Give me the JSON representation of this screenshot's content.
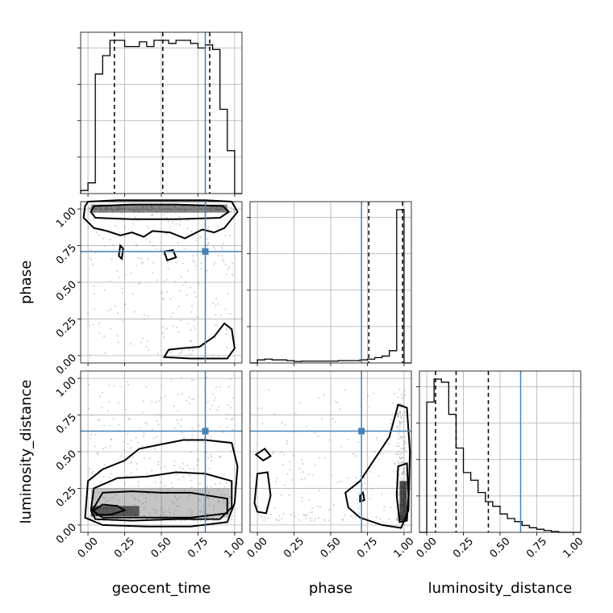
{
  "chart_data": {
    "type": "corner",
    "parameters": [
      "geocent_time",
      "phase",
      "luminosity_distance"
    ],
    "axis_labels": [
      "geocent_time",
      "phase",
      "luminosity_distance"
    ],
    "ranges": [
      [
        -0.05,
        1.05
      ],
      [
        -0.05,
        1.05
      ],
      [
        -0.05,
        1.05
      ]
    ],
    "ticks": [
      0.0,
      0.25,
      0.5,
      0.75,
      1.0
    ],
    "tick_labels": [
      "0.00",
      "0.25",
      "0.50",
      "0.75",
      "1.00"
    ],
    "truth_color": "#4682b4",
    "truths": [
      0.8,
      0.71,
      0.64
    ],
    "grid": true,
    "histograms": [
      {
        "param": "geocent_time",
        "bin_edges": [
          -0.05,
          0.0,
          0.05,
          0.1,
          0.15,
          0.2,
          0.25,
          0.3,
          0.35,
          0.4,
          0.45,
          0.5,
          0.55,
          0.6,
          0.65,
          0.7,
          0.75,
          0.8,
          0.85,
          0.9,
          0.95,
          1.0,
          1.05
        ],
        "heights": [
          0.02,
          0.07,
          0.78,
          0.9,
          1.0,
          1.0,
          0.96,
          0.96,
          0.99,
          0.96,
          1.0,
          1.0,
          0.98,
          1.0,
          1.0,
          0.98,
          0.95,
          0.97,
          0.94,
          0.55,
          0.28,
          0.0
        ],
        "quantiles": [
          0.18,
          0.51,
          0.83
        ]
      },
      {
        "param": "phase",
        "bin_edges": [
          -0.05,
          0.0,
          0.05,
          0.1,
          0.15,
          0.2,
          0.25,
          0.3,
          0.35,
          0.4,
          0.45,
          0.5,
          0.55,
          0.6,
          0.65,
          0.7,
          0.75,
          0.8,
          0.85,
          0.9,
          0.95,
          1.0,
          1.05
        ],
        "heights": [
          0.0,
          0.02,
          0.025,
          0.02,
          0.02,
          0.015,
          0.01,
          0.012,
          0.012,
          0.012,
          0.012,
          0.012,
          0.015,
          0.015,
          0.015,
          0.02,
          0.025,
          0.035,
          0.045,
          0.08,
          1.0,
          0.0
        ],
        "quantiles": [
          0.76,
          0.99
        ]
      },
      {
        "param": "luminosity_distance",
        "bin_edges": [
          -0.05,
          0.0,
          0.05,
          0.1,
          0.15,
          0.2,
          0.25,
          0.3,
          0.35,
          0.4,
          0.45,
          0.5,
          0.55,
          0.6,
          0.65,
          0.7,
          0.75,
          0.8,
          0.85,
          0.9,
          0.95,
          1.0,
          1.05
        ],
        "heights": [
          0.0,
          0.85,
          1.0,
          0.98,
          0.77,
          0.55,
          0.39,
          0.34,
          0.26,
          0.2,
          0.17,
          0.12,
          0.09,
          0.07,
          0.045,
          0.03,
          0.02,
          0.012,
          0.005,
          0.0,
          0.0,
          0.0
        ],
        "quantiles": [
          0.06,
          0.2,
          0.42
        ]
      }
    ],
    "scatter_panels": [
      {
        "x": "geocent_time",
        "y": "phase",
        "density": "phase concentrated near 1.0 across all geocent_time; sparse uniform scatter elsewhere",
        "contours": [
          [
            [
              0.0,
              1.05
            ],
            [
              0.2,
              1.06
            ],
            [
              0.5,
              1.06
            ],
            [
              0.8,
              1.06
            ],
            [
              0.98,
              1.05
            ],
            [
              1.02,
              0.98
            ],
            [
              0.93,
              0.87
            ],
            [
              0.86,
              0.84
            ],
            [
              0.78,
              0.86
            ],
            [
              0.66,
              0.8
            ],
            [
              0.56,
              0.84
            ],
            [
              0.44,
              0.85
            ],
            [
              0.38,
              0.81
            ],
            [
              0.3,
              0.84
            ],
            [
              0.22,
              0.82
            ],
            [
              0.13,
              0.85
            ],
            [
              0.04,
              0.87
            ],
            [
              -0.03,
              0.94
            ],
            [
              -0.02,
              1.02
            ],
            [
              0.0,
              1.05
            ]
          ],
          [
            [
              0.04,
              1.02
            ],
            [
              0.3,
              1.03
            ],
            [
              0.6,
              1.03
            ],
            [
              0.92,
              1.02
            ],
            [
              0.96,
              0.98
            ],
            [
              0.9,
              0.94
            ],
            [
              0.6,
              0.93
            ],
            [
              0.3,
              0.93
            ],
            [
              0.05,
              0.94
            ],
            [
              0.02,
              0.98
            ],
            [
              0.04,
              1.02
            ]
          ],
          [
            [
              0.52,
              -0.01
            ],
            [
              0.7,
              -0.02
            ],
            [
              0.95,
              -0.02
            ],
            [
              1.0,
              0.05
            ],
            [
              0.98,
              0.18
            ],
            [
              0.93,
              0.22
            ],
            [
              0.86,
              0.13
            ],
            [
              0.76,
              0.06
            ],
            [
              0.64,
              0.05
            ],
            [
              0.55,
              0.04
            ],
            [
              0.52,
              -0.01
            ]
          ],
          [
            [
              0.22,
              0.75
            ],
            [
              0.24,
              0.73
            ],
            [
              0.23,
              0.66
            ],
            [
              0.21,
              0.68
            ],
            [
              0.22,
              0.75
            ]
          ],
          [
            [
              0.52,
              0.71
            ],
            [
              0.58,
              0.72
            ],
            [
              0.6,
              0.67
            ],
            [
              0.54,
              0.65
            ],
            [
              0.52,
              0.71
            ]
          ]
        ]
      },
      {
        "x": "geocent_time",
        "y": "luminosity_distance",
        "density": "luminosity_distance concentrated near 0.05–0.30 with long tail to 1.0",
        "contours": [
          [
            [
              -0.02,
              0.05
            ],
            [
              0.0,
              0.3
            ],
            [
              0.1,
              0.38
            ],
            [
              0.25,
              0.44
            ],
            [
              0.35,
              0.52
            ],
            [
              0.5,
              0.55
            ],
            [
              0.65,
              0.58
            ],
            [
              0.8,
              0.58
            ],
            [
              0.98,
              0.56
            ],
            [
              1.02,
              0.4
            ],
            [
              1.0,
              0.15
            ],
            [
              0.95,
              0.02
            ],
            [
              0.7,
              -0.01
            ],
            [
              0.4,
              -0.01
            ],
            [
              0.1,
              0.0
            ],
            [
              -0.02,
              0.05
            ]
          ],
          [
            [
              0.02,
              0.1
            ],
            [
              0.04,
              0.25
            ],
            [
              0.2,
              0.32
            ],
            [
              0.4,
              0.33
            ],
            [
              0.6,
              0.36
            ],
            [
              0.8,
              0.35
            ],
            [
              0.98,
              0.3
            ],
            [
              0.98,
              0.12
            ],
            [
              0.9,
              0.04
            ],
            [
              0.6,
              0.04
            ],
            [
              0.3,
              0.03
            ],
            [
              0.05,
              0.04
            ],
            [
              0.02,
              0.1
            ]
          ],
          [
            [
              0.03,
              0.1
            ],
            [
              0.1,
              0.22
            ],
            [
              0.3,
              0.23
            ],
            [
              0.5,
              0.22
            ],
            [
              0.7,
              0.22
            ],
            [
              0.95,
              0.18
            ],
            [
              0.95,
              0.08
            ],
            [
              0.7,
              0.05
            ],
            [
              0.4,
              0.05
            ],
            [
              0.1,
              0.05
            ],
            [
              0.03,
              0.1
            ]
          ],
          [
            [
              0.04,
              0.1
            ],
            [
              0.1,
              0.14
            ],
            [
              0.2,
              0.13
            ],
            [
              0.25,
              0.1
            ],
            [
              0.15,
              0.07
            ],
            [
              0.06,
              0.07
            ],
            [
              0.04,
              0.1
            ]
          ]
        ]
      },
      {
        "x": "phase",
        "y": "luminosity_distance",
        "density": "mass concentrated at phase≈1.0, low luminosity_distance",
        "contours": [
          [
            [
              0.6,
              0.22
            ],
            [
              0.7,
              0.3
            ],
            [
              0.8,
              0.45
            ],
            [
              0.9,
              0.6
            ],
            [
              0.96,
              0.82
            ],
            [
              1.02,
              0.8
            ],
            [
              1.04,
              0.5
            ],
            [
              1.03,
              0.1
            ],
            [
              0.98,
              -0.02
            ],
            [
              0.85,
              0.0
            ],
            [
              0.7,
              0.05
            ],
            [
              0.62,
              0.12
            ],
            [
              0.6,
              0.22
            ]
          ],
          [
            [
              0.96,
              0.4
            ],
            [
              1.02,
              0.42
            ],
            [
              1.03,
              0.2
            ],
            [
              1.02,
              0.03
            ],
            [
              0.97,
              0.02
            ],
            [
              0.95,
              0.2
            ],
            [
              0.96,
              0.4
            ]
          ],
          [
            [
              -0.01,
              0.48
            ],
            [
              0.05,
              0.52
            ],
            [
              0.09,
              0.47
            ],
            [
              0.04,
              0.44
            ],
            [
              -0.01,
              0.48
            ]
          ],
          [
            [
              -0.02,
              0.15
            ],
            [
              0.0,
              0.35
            ],
            [
              0.07,
              0.36
            ],
            [
              0.09,
              0.2
            ],
            [
              0.06,
              0.08
            ],
            [
              0.0,
              0.09
            ],
            [
              -0.02,
              0.15
            ]
          ],
          [
            [
              0.7,
              0.2
            ],
            [
              0.72,
              0.22
            ],
            [
              0.73,
              0.17
            ],
            [
              0.7,
              0.16
            ],
            [
              0.7,
              0.2
            ]
          ]
        ]
      }
    ]
  }
}
